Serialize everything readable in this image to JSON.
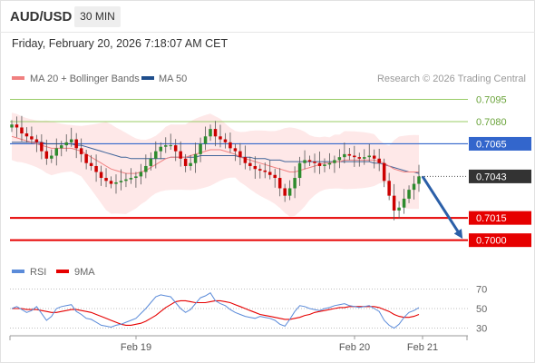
{
  "header": {
    "symbol": "AUD/USD",
    "timeframe": "30 MIN",
    "timestamp": "Friday, February 20, 2026 7:18:07 AM CET"
  },
  "attribution": "Research © 2026 Trading Central",
  "colors": {
    "resistance": "#99cc66",
    "support": "#e60000",
    "pivot": "#3366cc",
    "current": "#333333",
    "candle_up": "#2e8b2e",
    "candle_down": "#cc0000",
    "ma20": "#f08080",
    "ma50": "#1f4e8c",
    "bollinger_fill": "#fde0e0",
    "arrow": "#2b5fa8",
    "rsi": "#5b8bd9",
    "rsi_ma": "#e60000"
  },
  "chart_data": [
    {
      "type": "candlestick",
      "legend": [
        {
          "name": "MA 20 + Bollinger Bands",
          "color": "#f08080"
        },
        {
          "name": "MA 50",
          "color": "#1f4e8c"
        }
      ],
      "ylim": [
        0.699,
        0.7102
      ],
      "x_ticks": [
        "Feb 19",
        "Feb 20",
        "Feb 21"
      ],
      "levels": [
        {
          "value": 0.7095,
          "label": "0.7095",
          "kind": "resistance"
        },
        {
          "value": 0.708,
          "label": "0.7080",
          "kind": "resistance"
        },
        {
          "value": 0.7065,
          "label": "0.7065",
          "kind": "pivot"
        },
        {
          "value": 0.7043,
          "label": "0.7043",
          "kind": "current"
        },
        {
          "value": 0.7015,
          "label": "0.7015",
          "kind": "support"
        },
        {
          "value": 0.7,
          "label": "0.7000",
          "kind": "support"
        }
      ],
      "forecast": {
        "from": 0.7043,
        "to": 0.7003
      },
      "series": [
        {
          "name": "close",
          "values": [
            0.7078,
            0.7076,
            0.7072,
            0.707,
            0.7068,
            0.7066,
            0.706,
            0.7055,
            0.7057,
            0.7062,
            0.7064,
            0.7066,
            0.7068,
            0.7062,
            0.7058,
            0.7052,
            0.705,
            0.7046,
            0.7042,
            0.704,
            0.7038,
            0.7039,
            0.704,
            0.7041,
            0.7042,
            0.7043,
            0.7046,
            0.705,
            0.7055,
            0.706,
            0.7063,
            0.7064,
            0.7064,
            0.706,
            0.7055,
            0.705,
            0.7052,
            0.7058,
            0.7065,
            0.707,
            0.7075,
            0.707,
            0.7068,
            0.7066,
            0.7062,
            0.706,
            0.7056,
            0.7052,
            0.705,
            0.7048,
            0.7047,
            0.7046,
            0.7044,
            0.7042,
            0.7035,
            0.703,
            0.7035,
            0.7042,
            0.7052,
            0.7054,
            0.7053,
            0.7052,
            0.705,
            0.7051,
            0.7052,
            0.7054,
            0.7056,
            0.7058,
            0.7057,
            0.7056,
            0.7055,
            0.7056,
            0.7057,
            0.7055,
            0.7052,
            0.704,
            0.703,
            0.702,
            0.7022,
            0.7028,
            0.7034,
            0.7038,
            0.7043
          ]
        },
        {
          "name": "MA 20",
          "values": [
            0.707,
            0.7069,
            0.7068,
            0.7067,
            0.7066,
            0.7065,
            0.7064,
            0.7063,
            0.7062,
            0.7062,
            0.7062,
            0.7062,
            0.7062,
            0.7061,
            0.706,
            0.7058,
            0.7056,
            0.7054,
            0.7052,
            0.705,
            0.7048,
            0.7047,
            0.7046,
            0.7045,
            0.7045,
            0.7045,
            0.7046,
            0.7047,
            0.7049,
            0.7051,
            0.7053,
            0.7055,
            0.7056,
            0.7056,
            0.7056,
            0.7056,
            0.7057,
            0.7058,
            0.7059,
            0.706,
            0.7061,
            0.7061,
            0.7061,
            0.706,
            0.7059,
            0.7058,
            0.7056,
            0.7055,
            0.7054,
            0.7053,
            0.7052,
            0.7051,
            0.705,
            0.7049,
            0.7048,
            0.7047,
            0.7046,
            0.7046,
            0.7047,
            0.7048,
            0.7049,
            0.705,
            0.7051,
            0.7052,
            0.7052,
            0.7053,
            0.7053,
            0.7054,
            0.7054,
            0.7054,
            0.7054,
            0.7054,
            0.7054,
            0.7054,
            0.7053,
            0.7052,
            0.705,
            0.7048,
            0.7047,
            0.7046,
            0.7046,
            0.7046,
            0.7046
          ]
        },
        {
          "name": "MA 50",
          "values": [
            0.7066,
            0.7066,
            0.7066,
            0.7066,
            0.7066,
            0.7066,
            0.7066,
            0.7065,
            0.7065,
            0.7065,
            0.7065,
            0.7065,
            0.7065,
            0.7064,
            0.7064,
            0.7063,
            0.7062,
            0.7061,
            0.706,
            0.7059,
            0.7058,
            0.7057,
            0.7056,
            0.7056,
            0.7055,
            0.7055,
            0.7055,
            0.7055,
            0.7055,
            0.7055,
            0.7055,
            0.7055,
            0.7056,
            0.7056,
            0.7056,
            0.7056,
            0.7056,
            0.7056,
            0.7057,
            0.7057,
            0.7057,
            0.7057,
            0.7057,
            0.7057,
            0.7057,
            0.7057,
            0.7056,
            0.7056,
            0.7056,
            0.7055,
            0.7055,
            0.7055,
            0.7054,
            0.7054,
            0.7054,
            0.7053,
            0.7053,
            0.7053,
            0.7053,
            0.7053,
            0.7053,
            0.7053,
            0.7053,
            0.7053,
            0.7053,
            0.7053,
            0.7053,
            0.7053,
            0.7053,
            0.7053,
            0.7053,
            0.7053,
            0.7053,
            0.7052,
            0.7052,
            0.7051,
            0.705,
            0.7049,
            0.7048,
            0.7047,
            0.7046,
            0.7046,
            0.7045
          ]
        }
      ]
    },
    {
      "type": "line",
      "legend": [
        {
          "name": "RSI",
          "color": "#5b8bd9"
        },
        {
          "name": "9MA",
          "color": "#e60000"
        }
      ],
      "ylim": [
        25,
        75
      ],
      "y_ticks": [
        70,
        50,
        30
      ],
      "series": [
        {
          "name": "RSI",
          "values": [
            50,
            52,
            49,
            46,
            48,
            52,
            45,
            38,
            42,
            50,
            52,
            53,
            54,
            47,
            44,
            40,
            39,
            36,
            33,
            32,
            31,
            33,
            34,
            36,
            38,
            40,
            45,
            50,
            56,
            62,
            64,
            63,
            62,
            56,
            50,
            46,
            49,
            55,
            61,
            63,
            66,
            58,
            55,
            53,
            49,
            46,
            44,
            42,
            41,
            40,
            42,
            41,
            40,
            38,
            34,
            32,
            39,
            47,
            53,
            52,
            50,
            49,
            48,
            50,
            51,
            53,
            54,
            55,
            53,
            52,
            51,
            52,
            53,
            50,
            47,
            38,
            33,
            30,
            34,
            41,
            46,
            48,
            51
          ]
        },
        {
          "name": "9MA",
          "values": [
            50,
            50,
            50,
            49,
            49,
            49,
            48,
            47,
            46,
            46,
            47,
            48,
            49,
            49,
            48,
            47,
            46,
            44,
            42,
            40,
            38,
            36,
            34,
            33,
            33,
            34,
            35,
            37,
            40,
            43,
            47,
            51,
            54,
            57,
            58,
            58,
            57,
            56,
            56,
            56,
            57,
            58,
            58,
            57,
            56,
            54,
            52,
            50,
            48,
            46,
            44,
            43,
            42,
            41,
            40,
            39,
            39,
            40,
            41,
            43,
            44,
            46,
            47,
            48,
            49,
            50,
            51,
            51,
            52,
            52,
            52,
            52,
            52,
            52,
            51,
            49,
            47,
            44,
            42,
            41,
            41,
            42,
            44
          ]
        }
      ]
    }
  ]
}
